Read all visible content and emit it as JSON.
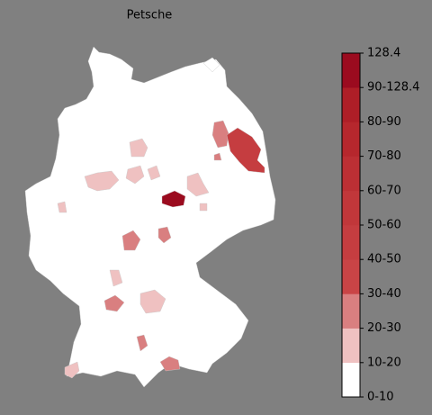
{
  "title": "Petsche",
  "colorbar": {
    "labels": [
      "0-10",
      "10-20",
      "20-30",
      "30-40",
      "40-50",
      "50-60",
      "60-70",
      "70-80",
      "80-90",
      "90-128.4",
      "128.4"
    ],
    "colors": [
      "#ffffff",
      "#efc1c1",
      "#d97f80",
      "#c94446",
      "#c53d40",
      "#c1373a",
      "#bc2f34",
      "#b6272d",
      "#ae1e27",
      "#9b0b1f"
    ]
  }
}
